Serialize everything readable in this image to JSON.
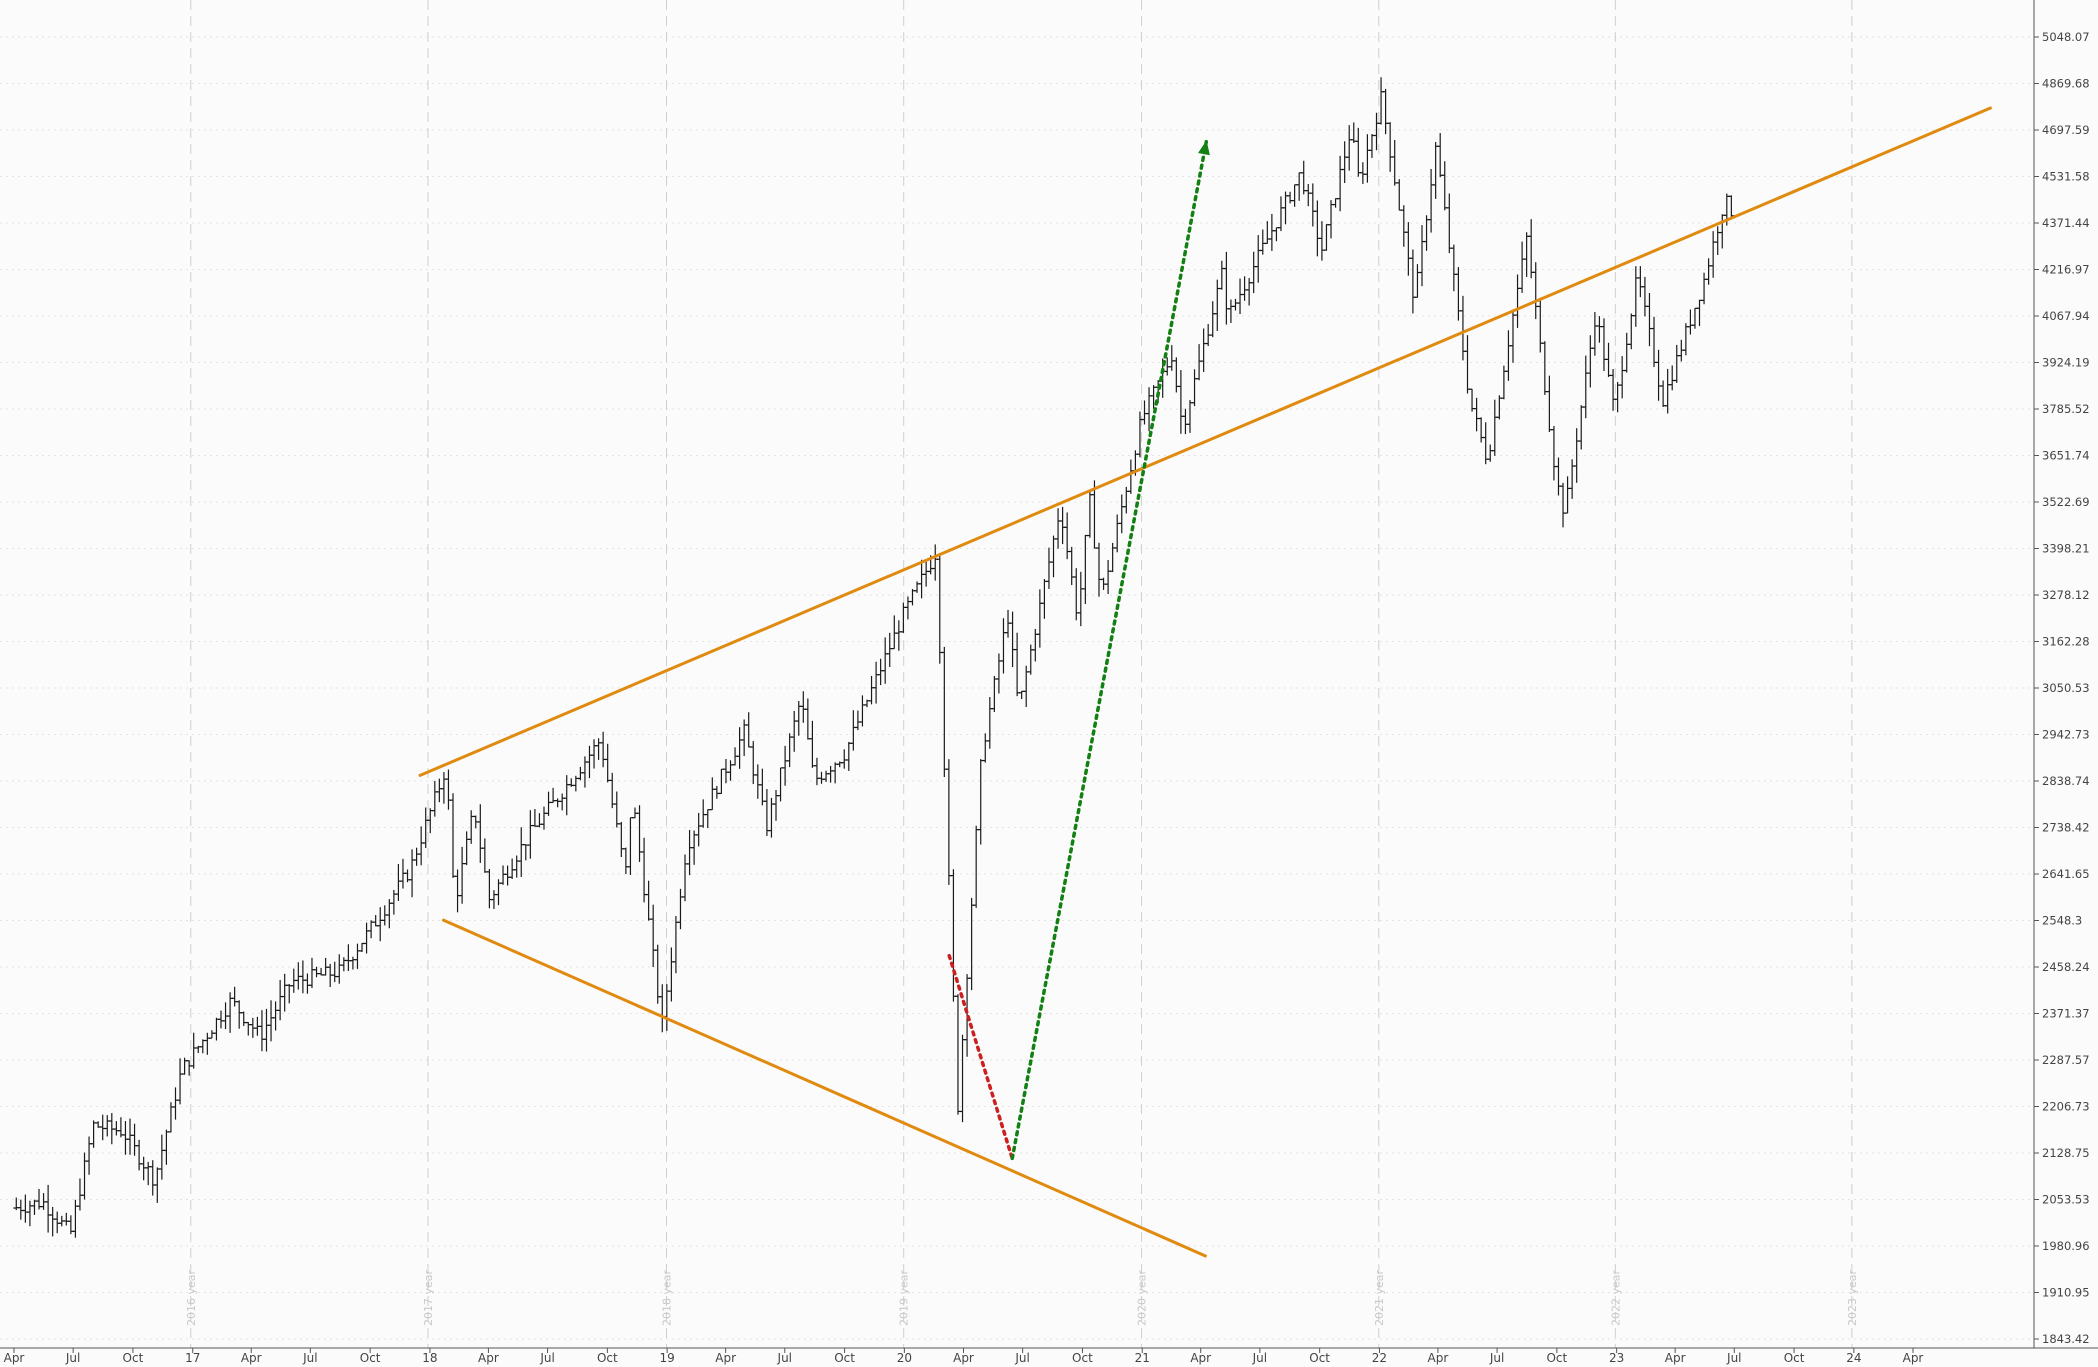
{
  "chart_data": {
    "type": "ohlc",
    "price_axis": {
      "scale": "log",
      "position": "right",
      "range": [
        1843.42,
        5048.07
      ],
      "ticks": [
        "5048.07",
        "4869.68",
        "4697.59",
        "4531.58",
        "4371.44",
        "4216.97",
        "4067.94",
        "3924.19",
        "3785.52",
        "3651.74",
        "3522.69",
        "3398.21",
        "3278.12",
        "3162.28",
        "3050.53",
        "2942.73",
        "2838.74",
        "2738.42",
        "2641.65",
        "2548.3",
        "2458.24",
        "2371.37",
        "2287.57",
        "2206.73",
        "2128.75",
        "2053.53",
        "1980.96",
        "1910.95",
        "1843.42"
      ]
    },
    "time_axis": {
      "range": [
        "2016-04-01",
        "2024-07-31"
      ],
      "ticks": [
        {
          "date": "2016-04-01",
          "label": "Apr"
        },
        {
          "date": "2016-07-01",
          "label": "Jul"
        },
        {
          "date": "2016-10-01",
          "label": "Oct"
        },
        {
          "date": "2017-01-01",
          "label": "17"
        },
        {
          "date": "2017-04-01",
          "label": "Apr"
        },
        {
          "date": "2017-07-01",
          "label": "Jul"
        },
        {
          "date": "2017-10-01",
          "label": "Oct"
        },
        {
          "date": "2018-01-01",
          "label": "18"
        },
        {
          "date": "2018-04-01",
          "label": "Apr"
        },
        {
          "date": "2018-07-01",
          "label": "Jul"
        },
        {
          "date": "2018-10-01",
          "label": "Oct"
        },
        {
          "date": "2019-01-01",
          "label": "19"
        },
        {
          "date": "2019-04-01",
          "label": "Apr"
        },
        {
          "date": "2019-07-01",
          "label": "Jul"
        },
        {
          "date": "2019-10-01",
          "label": "Oct"
        },
        {
          "date": "2020-01-01",
          "label": "20"
        },
        {
          "date": "2020-04-01",
          "label": "Apr"
        },
        {
          "date": "2020-07-01",
          "label": "Jul"
        },
        {
          "date": "2020-10-01",
          "label": "Oct"
        },
        {
          "date": "2021-01-01",
          "label": "21"
        },
        {
          "date": "2021-04-01",
          "label": "Apr"
        },
        {
          "date": "2021-07-01",
          "label": "Jul"
        },
        {
          "date": "2021-10-01",
          "label": "Oct"
        },
        {
          "date": "2022-01-01",
          "label": "22"
        },
        {
          "date": "2022-04-01",
          "label": "Apr"
        },
        {
          "date": "2022-07-01",
          "label": "Jul"
        },
        {
          "date": "2022-10-01",
          "label": "Oct"
        },
        {
          "date": "2023-01-01",
          "label": "23"
        },
        {
          "date": "2023-04-01",
          "label": "Apr"
        },
        {
          "date": "2023-07-01",
          "label": "Jul"
        },
        {
          "date": "2023-10-01",
          "label": "Oct"
        },
        {
          "date": "2024-01-01",
          "label": "24"
        },
        {
          "date": "2024-04-01",
          "label": "Apr"
        }
      ],
      "year_markers": [
        {
          "date": "2016-12-29",
          "label": "2016 year"
        },
        {
          "date": "2017-12-29",
          "label": "2017 year"
        },
        {
          "date": "2018-12-31",
          "label": "2018 year"
        },
        {
          "date": "2019-12-31",
          "label": "2019 year"
        },
        {
          "date": "2020-12-31",
          "label": "2020 year"
        },
        {
          "date": "2021-12-31",
          "label": "2021 year"
        },
        {
          "date": "2022-12-30",
          "label": "2022 year"
        },
        {
          "date": "2023-12-29",
          "label": "2023 year"
        }
      ]
    },
    "price_path": [
      {
        "date": "2016-04-01",
        "price": 2040
      },
      {
        "date": "2016-05-15",
        "price": 2050
      },
      {
        "date": "2016-06-27",
        "price": 2000
      },
      {
        "date": "2016-08-01",
        "price": 2175
      },
      {
        "date": "2016-09-15",
        "price": 2165
      },
      {
        "date": "2016-11-03",
        "price": 2085
      },
      {
        "date": "2016-12-15",
        "price": 2270
      },
      {
        "date": "2017-03-01",
        "price": 2395
      },
      {
        "date": "2017-04-15",
        "price": 2330
      },
      {
        "date": "2017-06-01",
        "price": 2430
      },
      {
        "date": "2017-08-15",
        "price": 2450
      },
      {
        "date": "2017-10-01",
        "price": 2530
      },
      {
        "date": "2017-12-01",
        "price": 2650
      },
      {
        "date": "2018-01-26",
        "price": 2870
      },
      {
        "date": "2018-02-08",
        "price": 2580
      },
      {
        "date": "2018-03-10",
        "price": 2780
      },
      {
        "date": "2018-04-02",
        "price": 2590
      },
      {
        "date": "2018-06-01",
        "price": 2720
      },
      {
        "date": "2018-07-15",
        "price": 2800
      },
      {
        "date": "2018-09-20",
        "price": 2930
      },
      {
        "date": "2018-10-29",
        "price": 2640
      },
      {
        "date": "2018-11-08",
        "price": 2810
      },
      {
        "date": "2018-12-24",
        "price": 2350
      },
      {
        "date": "2019-01-31",
        "price": 2700
      },
      {
        "date": "2019-04-30",
        "price": 2950
      },
      {
        "date": "2019-06-03",
        "price": 2740
      },
      {
        "date": "2019-07-26",
        "price": 3025
      },
      {
        "date": "2019-08-15",
        "price": 2840
      },
      {
        "date": "2019-10-01",
        "price": 2900
      },
      {
        "date": "2019-12-31",
        "price": 3230
      },
      {
        "date": "2020-02-19",
        "price": 3390
      },
      {
        "date": "2020-03-23",
        "price": 2200
      },
      {
        "date": "2020-04-29",
        "price": 2900
      },
      {
        "date": "2020-06-08",
        "price": 3230
      },
      {
        "date": "2020-06-25",
        "price": 3000
      },
      {
        "date": "2020-08-28",
        "price": 3510
      },
      {
        "date": "2020-09-24",
        "price": 3220
      },
      {
        "date": "2020-10-12",
        "price": 3530
      },
      {
        "date": "2020-10-30",
        "price": 3270
      },
      {
        "date": "2020-12-31",
        "price": 3755
      },
      {
        "date": "2021-02-16",
        "price": 3950
      },
      {
        "date": "2021-03-04",
        "price": 3730
      },
      {
        "date": "2021-05-07",
        "price": 4230
      },
      {
        "date": "2021-05-12",
        "price": 4060
      },
      {
        "date": "2021-09-02",
        "price": 4545
      },
      {
        "date": "2021-10-04",
        "price": 4280
      },
      {
        "date": "2021-11-18",
        "price": 4700
      },
      {
        "date": "2021-12-01",
        "price": 4510
      },
      {
        "date": "2022-01-04",
        "price": 4820
      },
      {
        "date": "2022-02-24",
        "price": 4115
      },
      {
        "date": "2022-03-29",
        "price": 4640
      },
      {
        "date": "2022-05-20",
        "price": 3810
      },
      {
        "date": "2022-06-16",
        "price": 3640
      },
      {
        "date": "2022-08-16",
        "price": 4325
      },
      {
        "date": "2022-09-30",
        "price": 3585
      },
      {
        "date": "2022-10-13",
        "price": 3490
      },
      {
        "date": "2022-11-30",
        "price": 4080
      },
      {
        "date": "2022-12-28",
        "price": 3785
      },
      {
        "date": "2023-02-02",
        "price": 4195
      },
      {
        "date": "2023-03-13",
        "price": 3810
      },
      {
        "date": "2023-05-15",
        "price": 4180
      },
      {
        "date": "2023-06-16",
        "price": 4450
      },
      {
        "date": "2023-07-03",
        "price": 4390
      }
    ],
    "annotations": [
      {
        "type": "trendline",
        "name": "upper",
        "color": "#e08a10",
        "from": {
          "date": "2017-12-15",
          "price": 2850
        },
        "to": {
          "date": "2024-07-31",
          "price": 4780
        }
      },
      {
        "type": "trendline",
        "name": "lower",
        "color": "#e08a10",
        "from": {
          "date": "2018-01-20",
          "price": 2550
        },
        "to": {
          "date": "2021-04-10",
          "price": 1965
        }
      },
      {
        "type": "dotted-line",
        "name": "drop",
        "color": "#cc1f1f",
        "from": {
          "date": "2020-03-10",
          "price": 2480
        },
        "to": {
          "date": "2020-06-15",
          "price": 2120
        }
      },
      {
        "type": "dotted-arrow",
        "name": "projection",
        "color": "#128012",
        "from": {
          "date": "2020-06-15",
          "price": 2120
        },
        "to": {
          "date": "2021-04-10",
          "price": 4660
        }
      }
    ]
  }
}
